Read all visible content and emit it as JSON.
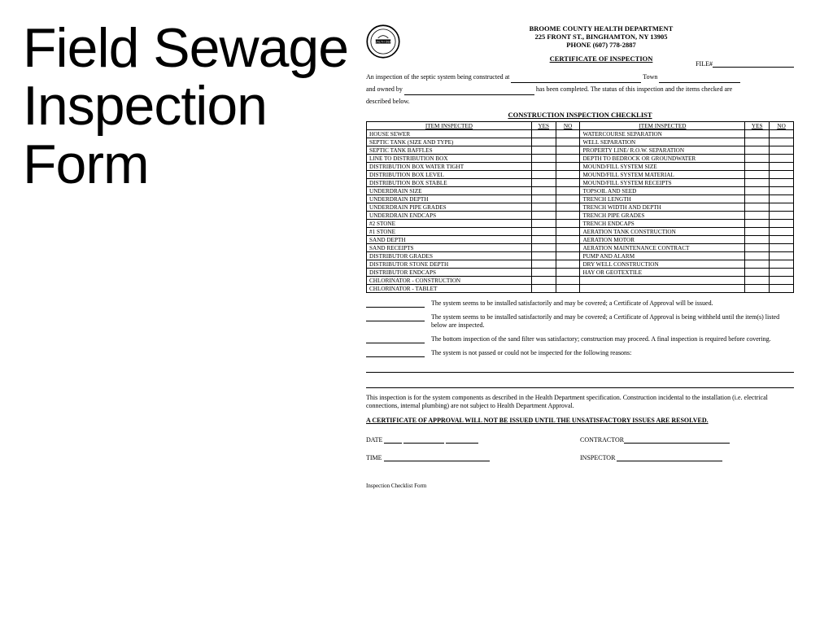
{
  "title": "Field Sewage Inspection Form",
  "header": {
    "dept": "BROOME COUNTY HEALTH DEPARTMENT",
    "addr": "225 FRONT ST., BINGHAMTON, NY   13905",
    "phone": "PHONE (607) 778-2887",
    "cert": "CERTIFICATE OF INSPECTION",
    "file_label": "FILE#"
  },
  "intro": {
    "line1a": "An inspection of the septic system being constructed at",
    "line1b": "Town",
    "line2a": "and owned by",
    "line2b": "has been completed.  The status of this inspection and the items checked are",
    "line3": "described below."
  },
  "checklist_title": "CONSTRUCTION INSPECTION CHECKLIST",
  "columns": {
    "item": "ITEM INSPECTED",
    "yes": "YES",
    "no": "NO"
  },
  "left_items": [
    "HOUSE SEWER",
    "SEPTIC TANK (SIZE AND TYPE)",
    "SEPTIC TANK BAFFLES",
    "LINE TO DISTRIBUTION BOX",
    "DISTRIBUTION BOX WATER TIGHT",
    "DISTRIBUTION BOX LEVEL",
    "DISTRIBUTION BOX STABLE",
    "UNDERDRAIN SIZE",
    "UNDERDRAIN DEPTH",
    "UNDERDRAIN PIPE GRADES",
    "UNDERDRAIN ENDCAPS",
    "#2 STONE",
    "#1 STONE",
    "SAND DEPTH",
    "SAND RECEIPTS",
    "DISTRIBUTOR GRADES",
    "DISTRIBUTOR STONE DEPTH",
    "DISTRIBUTOR ENDCAPS",
    "CHLORINATOR - CONSTRUCTION",
    "CHLORINATOR - TABLET"
  ],
  "right_items": [
    "WATERCOURSE SEPARATION",
    "WELL SEPARATION",
    "PROPERTY LINE/ R.O.W. SEPARATION",
    "DEPTH TO BEDROCK OR GROUNDWATER",
    "MOUND/FILL SYSTEM SIZE",
    "MOUND/FILL SYSTEM MATERIAL",
    "MOUND/FILL SYSTEM RECEIPTS",
    "TOPSOIL AND SEED",
    "TRENCH LENGTH",
    "TRENCH WIDTH AND DEPTH",
    "TRENCH PIPE GRADES",
    "TRENCH ENDCAPS",
    "AERATION TANK CONSTRUCTION",
    "AERATION MOTOR",
    "AERATION MAINTENANCE CONTRACT",
    "PUMP AND ALARM",
    "DRY WELL CONSTRUCTION",
    "HAY OR GEOTEXTILE",
    "",
    ""
  ],
  "findings": [
    "The system seems to be installed satisfactorily and may be covered; a Certificate of Approval will be issued.",
    "The system seems to be installed satisfactorily and may be covered; a Certificate of Approval is being withheld until the item(s) listed below are inspected.",
    "The bottom inspection of the sand filter was satisfactory; construction may proceed.  A final inspection is required before covering.",
    "The system is not passed or could not be inspected for the following reasons:"
  ],
  "disclaimer": "This inspection is for the system components as described in the Health Department specification.  Construction incidental to the installation (i.e. electrical connections, internal plumbing) are not subject to Health Department Approval.",
  "warn": "A CERTIFICATE OF APPROVAL WILL NOT BE ISSUED UNTIL THE UNSATISFACTORY ISSUES ARE RESOLVED.",
  "sig": {
    "date": "DATE",
    "time": "TIME",
    "contractor": "CONTRACTOR",
    "inspector": "INSPECTOR"
  },
  "footer": "Inspection Checklist Form"
}
